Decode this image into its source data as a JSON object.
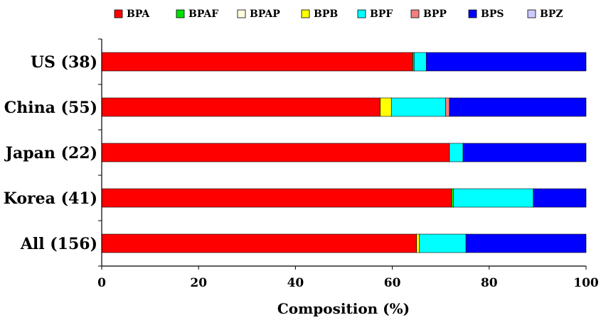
{
  "chart_data": {
    "type": "bar",
    "orientation": "horizontal",
    "stacked": true,
    "title": "",
    "xlabel": "Composition (%)",
    "ylabel": "",
    "xlim": [
      0,
      100
    ],
    "xticks": [
      "0",
      "20",
      "40",
      "60",
      "80",
      "100"
    ],
    "grid": false,
    "legend_position": "top",
    "categories": [
      "US (38)",
      "China (55)",
      "Japan (22)",
      "Korea (41)",
      "All (156)"
    ],
    "series": [
      {
        "name": "BPA",
        "color": "#ff0000",
        "values": [
          64.2,
          57.5,
          71.8,
          72.2,
          65.0
        ]
      },
      {
        "name": "BPAF",
        "color": "#00e000",
        "values": [
          0.3,
          0.0,
          0.0,
          0.4,
          0.0
        ]
      },
      {
        "name": "BPAP",
        "color": "#fdfde0",
        "values": [
          0.0,
          0.0,
          0.0,
          0.0,
          0.0
        ]
      },
      {
        "name": "BPB",
        "color": "#ffff00",
        "values": [
          0.0,
          2.3,
          0.0,
          0.0,
          0.6
        ]
      },
      {
        "name": "BPF",
        "color": "#00ffff",
        "values": [
          2.5,
          11.2,
          2.8,
          16.5,
          9.6
        ]
      },
      {
        "name": "BPP",
        "color": "#f08080",
        "values": [
          0.0,
          0.8,
          0.0,
          0.0,
          0.0
        ]
      },
      {
        "name": "BPS",
        "color": "#0000ff",
        "values": [
          33.0,
          28.2,
          25.4,
          10.9,
          24.8
        ]
      },
      {
        "name": "BPZ",
        "color": "#ccccff",
        "values": [
          0.0,
          0.0,
          0.0,
          0.0,
          0.0
        ]
      }
    ]
  }
}
